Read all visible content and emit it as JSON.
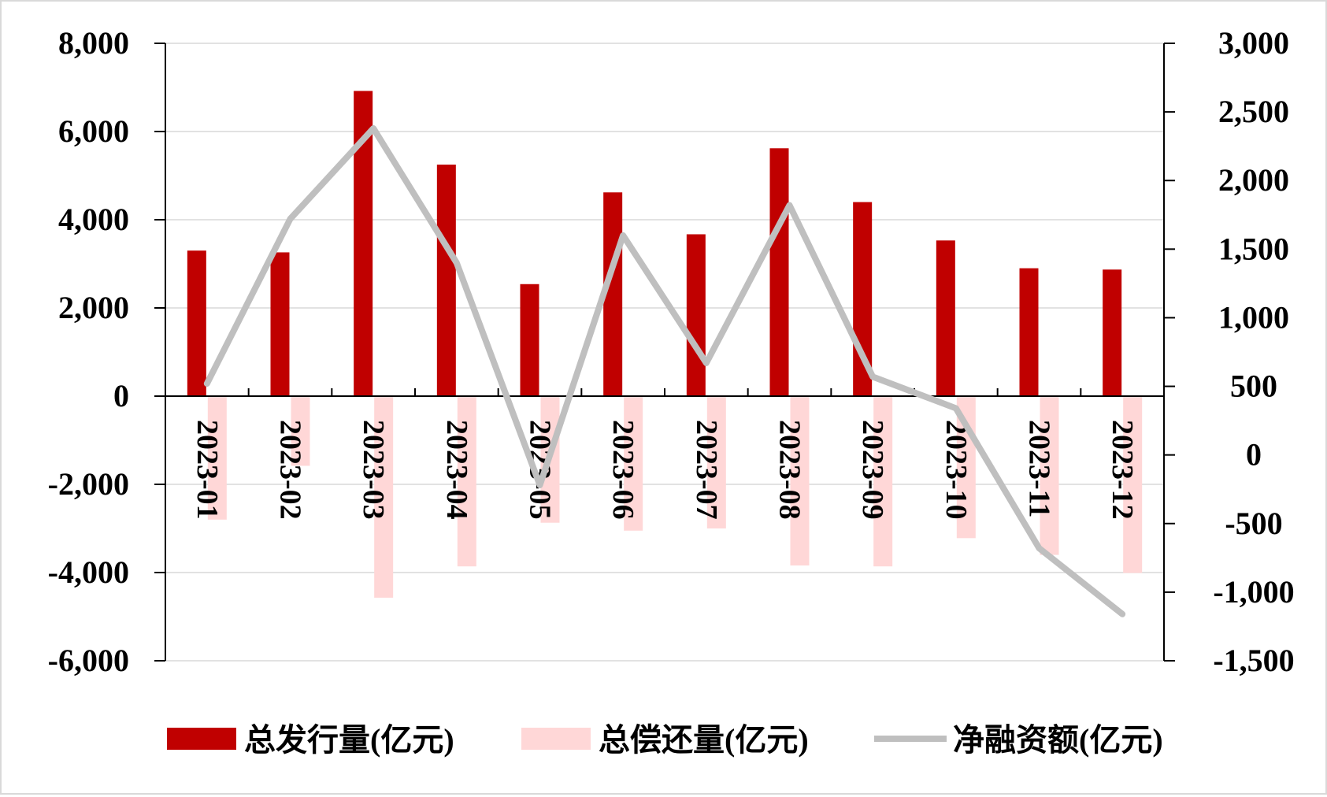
{
  "chart_data": {
    "type": "bar",
    "categories": [
      "2023-01",
      "2023-02",
      "2023-03",
      "2023-04",
      "2023-05",
      "2023-06",
      "2023-07",
      "2023-08",
      "2023-09",
      "2023-10",
      "2023-11",
      "2023-12"
    ],
    "series": [
      {
        "name": "总发行量(亿元)",
        "type": "bar",
        "axis": "left",
        "color": "#c00000",
        "values": [
          3300,
          3260,
          6920,
          5250,
          2540,
          4620,
          3670,
          5620,
          4400,
          3530,
          2900,
          2870
        ]
      },
      {
        "name": "总偿还量(亿元)",
        "type": "bar",
        "axis": "left",
        "color": "#ffd7d7",
        "values": [
          -2800,
          -1580,
          -4570,
          -3860,
          -2870,
          -3050,
          -3000,
          -3840,
          -3860,
          -3220,
          -3600,
          -4010
        ]
      },
      {
        "name": "净融资额(亿元)",
        "type": "line",
        "axis": "right",
        "color": "#bfbfbf",
        "values": [
          520,
          1720,
          2380,
          1400,
          -220,
          1600,
          670,
          1820,
          570,
          340,
          -680,
          -1160
        ]
      }
    ],
    "y_left": {
      "min": -6000,
      "max": 8000,
      "step": 2000,
      "tick_labels": [
        "8,000",
        "6,000",
        "4,000",
        "2,000",
        "0",
        "-2,000",
        "-4,000",
        "-6,000"
      ]
    },
    "y_right": {
      "min": -1500,
      "max": 3000,
      "step": 500,
      "tick_labels": [
        "3,000",
        "2,500",
        "2,000",
        "1,500",
        "1,000",
        "500",
        "0",
        "-500",
        "-1,000",
        "-1,500"
      ]
    },
    "grid": true,
    "legend_position": "bottom"
  }
}
